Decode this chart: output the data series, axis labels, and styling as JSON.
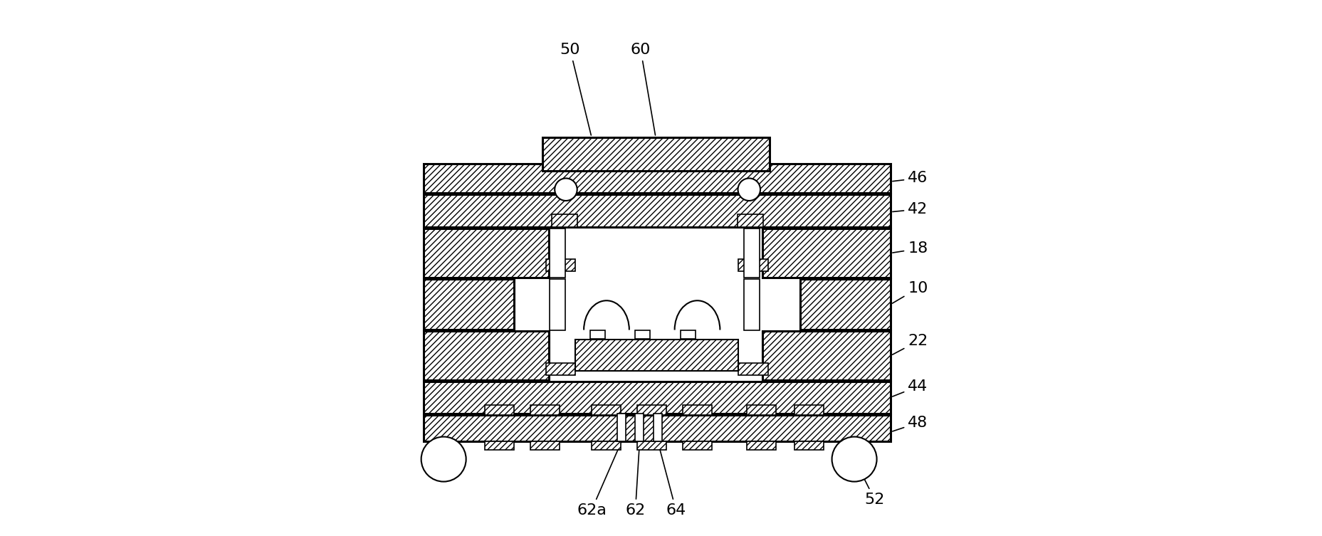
{
  "bg_color": "#ffffff",
  "line_color": "#000000",
  "hatch_pattern": "////",
  "fig_width": 18.57,
  "fig_height": 7.53,
  "label_fontsize": 16
}
